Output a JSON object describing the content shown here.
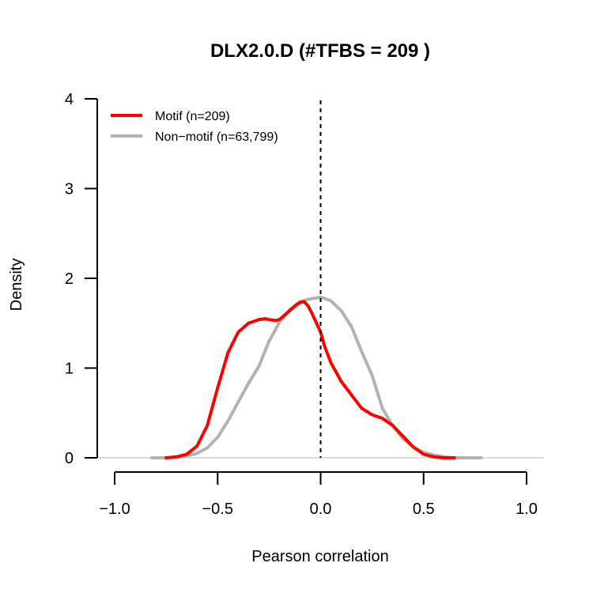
{
  "chart_data": {
    "type": "line",
    "title": "DLX2.0.D (#TFBS = 209 )",
    "xlabel": "Pearson correlation",
    "ylabel": "Density",
    "xlim": [
      -1.0,
      1.0
    ],
    "ylim": [
      0,
      4
    ],
    "x_ticks": [
      "−1.0",
      "−0.5",
      "0.0",
      "0.5",
      "1.0"
    ],
    "x_tick_values": [
      -1.0,
      -0.5,
      0.0,
      0.5,
      1.0
    ],
    "y_ticks": [
      "0",
      "1",
      "2",
      "3",
      "4"
    ],
    "y_tick_values": [
      0,
      1,
      2,
      3,
      4
    ],
    "vline": 0.0,
    "hline": 0,
    "legend_position": "top-left",
    "series": [
      {
        "name": "Motif (n=209)",
        "color": "#ff0000",
        "x": [
          -0.75,
          -0.7,
          -0.65,
          -0.6,
          -0.55,
          -0.5,
          -0.45,
          -0.4,
          -0.35,
          -0.3,
          -0.27,
          -0.25,
          -0.22,
          -0.2,
          -0.18,
          -0.15,
          -0.12,
          -0.1,
          -0.08,
          -0.06,
          -0.04,
          -0.02,
          0.0,
          0.02,
          0.05,
          0.1,
          0.15,
          0.2,
          0.25,
          0.3,
          0.35,
          0.4,
          0.45,
          0.5,
          0.55,
          0.6,
          0.65
        ],
        "y": [
          0.0,
          0.01,
          0.04,
          0.13,
          0.36,
          0.78,
          1.17,
          1.4,
          1.5,
          1.54,
          1.55,
          1.54,
          1.53,
          1.54,
          1.58,
          1.64,
          1.7,
          1.73,
          1.74,
          1.69,
          1.6,
          1.5,
          1.4,
          1.24,
          1.06,
          0.85,
          0.7,
          0.55,
          0.48,
          0.44,
          0.36,
          0.24,
          0.12,
          0.04,
          0.01,
          0.0,
          0.0
        ]
      },
      {
        "name": "Non−motif (n=63,799)",
        "color": "#b3b3b3",
        "x": [
          -0.82,
          -0.75,
          -0.7,
          -0.65,
          -0.6,
          -0.55,
          -0.5,
          -0.45,
          -0.4,
          -0.35,
          -0.3,
          -0.25,
          -0.2,
          -0.15,
          -0.1,
          -0.05,
          0.0,
          0.05,
          0.1,
          0.15,
          0.2,
          0.25,
          0.3,
          0.35,
          0.4,
          0.45,
          0.5,
          0.55,
          0.6,
          0.65,
          0.7,
          0.78
        ],
        "y": [
          0.0,
          0.0,
          0.01,
          0.02,
          0.05,
          0.11,
          0.23,
          0.41,
          0.62,
          0.83,
          1.02,
          1.3,
          1.51,
          1.65,
          1.74,
          1.77,
          1.79,
          1.75,
          1.64,
          1.46,
          1.18,
          0.92,
          0.55,
          0.36,
          0.21,
          0.12,
          0.06,
          0.03,
          0.01,
          0.0,
          0.0,
          0.0
        ]
      }
    ]
  }
}
